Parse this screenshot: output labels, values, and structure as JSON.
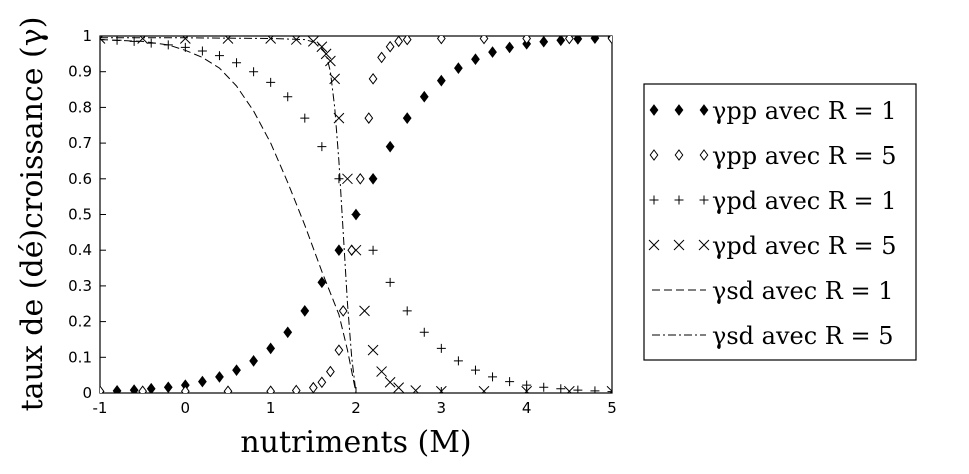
{
  "chart_data": {
    "type": "scatter",
    "title": "",
    "xlabel": "nutriments (M)",
    "ylabel": "taux de (dé)croissance (γ)",
    "xlim": [
      -1,
      5
    ],
    "ylim": [
      0,
      1
    ],
    "x_ticks": [
      "-1",
      "0",
      "1",
      "2",
      "3",
      "4",
      "5"
    ],
    "y_ticks": [
      "0",
      "0.1",
      "0.2",
      "0.3",
      "0.4",
      "0.5",
      "0.6",
      "0.7",
      "0.8",
      "0.9",
      "1"
    ],
    "legend_position": "right",
    "grid": false,
    "series": [
      {
        "name": "γpp avec R = 1",
        "marker": "filled-diamond",
        "points": [
          [
            -1,
            0.004
          ],
          [
            -0.8,
            0.006
          ],
          [
            -0.6,
            0.008
          ],
          [
            -0.4,
            0.012
          ],
          [
            -0.2,
            0.016
          ],
          [
            0,
            0.022
          ],
          [
            0.2,
            0.032
          ],
          [
            0.4,
            0.045
          ],
          [
            0.6,
            0.064
          ],
          [
            0.8,
            0.09
          ],
          [
            1,
            0.125
          ],
          [
            1.2,
            0.17
          ],
          [
            1.4,
            0.23
          ],
          [
            1.6,
            0.31
          ],
          [
            1.8,
            0.4
          ],
          [
            2,
            0.5
          ],
          [
            2.2,
            0.6
          ],
          [
            2.4,
            0.69
          ],
          [
            2.6,
            0.77
          ],
          [
            2.8,
            0.83
          ],
          [
            3,
            0.875
          ],
          [
            3.2,
            0.91
          ],
          [
            3.4,
            0.935
          ],
          [
            3.6,
            0.955
          ],
          [
            3.8,
            0.968
          ],
          [
            4,
            0.978
          ],
          [
            4.2,
            0.984
          ],
          [
            4.4,
            0.988
          ],
          [
            4.6,
            0.992
          ],
          [
            4.8,
            0.994
          ],
          [
            5,
            0.996
          ]
        ]
      },
      {
        "name": "γpp avec R = 5",
        "marker": "open-diamond",
        "points": [
          [
            -1,
            0.005
          ],
          [
            -0.5,
            0.005
          ],
          [
            0,
            0.005
          ],
          [
            0.5,
            0.005
          ],
          [
            1,
            0.005
          ],
          [
            1.3,
            0.007
          ],
          [
            1.5,
            0.015
          ],
          [
            1.6,
            0.03
          ],
          [
            1.7,
            0.06
          ],
          [
            1.8,
            0.12
          ],
          [
            1.85,
            0.23
          ],
          [
            1.95,
            0.4
          ],
          [
            2.05,
            0.6
          ],
          [
            2.15,
            0.77
          ],
          [
            2.2,
            0.88
          ],
          [
            2.3,
            0.94
          ],
          [
            2.4,
            0.97
          ],
          [
            2.5,
            0.985
          ],
          [
            2.6,
            0.99
          ],
          [
            3,
            0.993
          ],
          [
            3.5,
            0.993
          ],
          [
            4,
            0.993
          ],
          [
            4.5,
            0.993
          ],
          [
            5,
            0.993
          ]
        ]
      },
      {
        "name": "γpd avec R = 1",
        "marker": "plus",
        "points": [
          [
            -1,
            0.99
          ],
          [
            -0.8,
            0.988
          ],
          [
            -0.6,
            0.985
          ],
          [
            -0.4,
            0.98
          ],
          [
            -0.2,
            0.975
          ],
          [
            0,
            0.968
          ],
          [
            0.2,
            0.958
          ],
          [
            0.4,
            0.945
          ],
          [
            0.6,
            0.925
          ],
          [
            0.8,
            0.9
          ],
          [
            1,
            0.87
          ],
          [
            1.2,
            0.83
          ],
          [
            1.4,
            0.77
          ],
          [
            1.6,
            0.69
          ],
          [
            1.8,
            0.6
          ],
          [
            2,
            0.5
          ],
          [
            2.2,
            0.4
          ],
          [
            2.4,
            0.31
          ],
          [
            2.6,
            0.23
          ],
          [
            2.8,
            0.17
          ],
          [
            3,
            0.125
          ],
          [
            3.2,
            0.09
          ],
          [
            3.4,
            0.064
          ],
          [
            3.6,
            0.045
          ],
          [
            3.8,
            0.032
          ],
          [
            4,
            0.022
          ],
          [
            4.2,
            0.016
          ],
          [
            4.4,
            0.012
          ],
          [
            4.6,
            0.008
          ],
          [
            4.8,
            0.006
          ],
          [
            5,
            0.004
          ]
        ]
      },
      {
        "name": "γpd avec R = 5",
        "marker": "cross",
        "points": [
          [
            -1,
            0.993
          ],
          [
            -0.5,
            0.993
          ],
          [
            0,
            0.993
          ],
          [
            0.5,
            0.993
          ],
          [
            1,
            0.993
          ],
          [
            1.3,
            0.99
          ],
          [
            1.5,
            0.985
          ],
          [
            1.6,
            0.97
          ],
          [
            1.65,
            0.95
          ],
          [
            1.7,
            0.93
          ],
          [
            1.75,
            0.88
          ],
          [
            1.8,
            0.77
          ],
          [
            1.9,
            0.6
          ],
          [
            2,
            0.4
          ],
          [
            2.1,
            0.23
          ],
          [
            2.2,
            0.12
          ],
          [
            2.3,
            0.06
          ],
          [
            2.4,
            0.03
          ],
          [
            2.5,
            0.015
          ],
          [
            2.7,
            0.007
          ],
          [
            3,
            0.005
          ],
          [
            3.5,
            0.005
          ],
          [
            4,
            0.005
          ],
          [
            4.5,
            0.005
          ],
          [
            5,
            0.005
          ]
        ]
      },
      {
        "name": "γsd avec R = 1",
        "marker": "dashed-line",
        "points": [
          [
            -1,
            0.99
          ],
          [
            -0.5,
            0.985
          ],
          [
            -0.2,
            0.975
          ],
          [
            0,
            0.96
          ],
          [
            0.2,
            0.94
          ],
          [
            0.4,
            0.91
          ],
          [
            0.6,
            0.86
          ],
          [
            0.8,
            0.79
          ],
          [
            1,
            0.7
          ],
          [
            1.2,
            0.59
          ],
          [
            1.4,
            0.47
          ],
          [
            1.6,
            0.34
          ],
          [
            1.8,
            0.22
          ],
          [
            1.9,
            0.12
          ],
          [
            2,
            0.0
          ]
        ]
      },
      {
        "name": "γsd avec R = 5",
        "marker": "dash-dot-line",
        "points": [
          [
            -1,
            0.995
          ],
          [
            0,
            0.995
          ],
          [
            1,
            0.993
          ],
          [
            1.4,
            0.99
          ],
          [
            1.55,
            0.98
          ],
          [
            1.65,
            0.95
          ],
          [
            1.7,
            0.9
          ],
          [
            1.75,
            0.8
          ],
          [
            1.8,
            0.65
          ],
          [
            1.85,
            0.45
          ],
          [
            1.9,
            0.25
          ],
          [
            1.95,
            0.1
          ],
          [
            2,
            0.0
          ]
        ]
      }
    ]
  }
}
